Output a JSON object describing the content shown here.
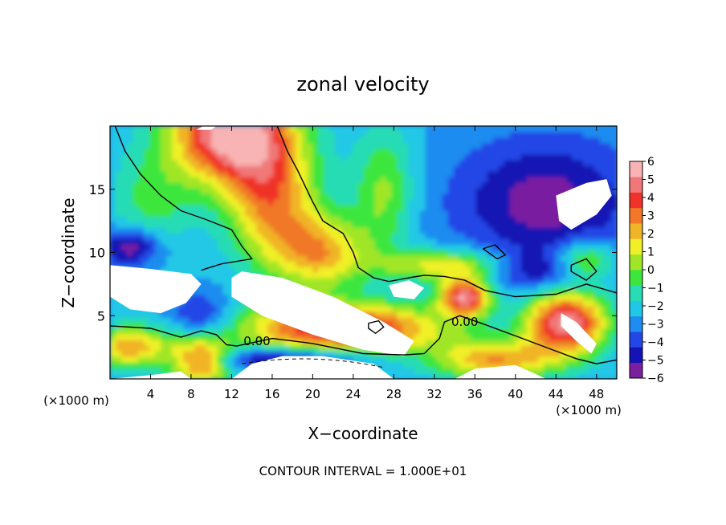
{
  "chart_data": {
    "type": "heatmap",
    "title": "zonal velocity",
    "xlabel": "X−coordinate",
    "ylabel": "Z−coordinate",
    "xlim": [
      0,
      50
    ],
    "ylim": [
      0,
      20
    ],
    "x_ticks": [
      4,
      8,
      12,
      16,
      20,
      24,
      28,
      32,
      36,
      40,
      44,
      48
    ],
    "y_ticks": [
      5,
      10,
      15
    ],
    "x_unit": "(×1000 m)",
    "y_unit": "(×1000 m)",
    "colorbar": {
      "min": -6,
      "max": 6,
      "ticks": [
        6,
        5,
        4,
        3,
        2,
        1,
        0,
        -1,
        -2,
        -3,
        -4,
        -5,
        -6
      ],
      "tick_labels": [
        "6",
        "5",
        "4",
        "3",
        "2",
        "1",
        "0",
        "−1",
        "−2",
        "−3",
        "−4",
        "−5",
        "−6"
      ]
    },
    "colormap": [
      "#7a1fa0",
      "#1414b4",
      "#2346e6",
      "#1e8cf0",
      "#20c8e6",
      "#28dcb4",
      "#3ce63c",
      "#a0e628",
      "#f0f028",
      "#f0b428",
      "#f07828",
      "#f03228",
      "#f07878",
      "#f8b4b4"
    ],
    "contour_labels": [
      {
        "x": 14.5,
        "y": 3.0,
        "text": "0.00"
      },
      {
        "x": 35.0,
        "y": 4.5,
        "text": "0.00"
      }
    ],
    "footer": "CONTOUR INTERVAL = 1.000E+01"
  }
}
